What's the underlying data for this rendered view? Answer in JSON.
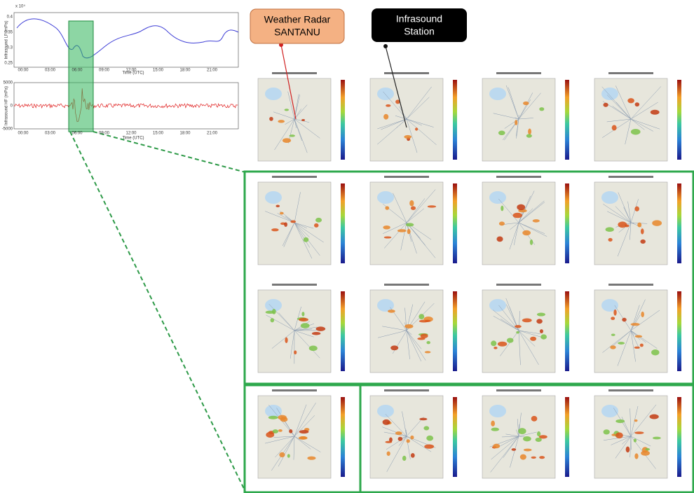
{
  "callouts": {
    "radar": [
      "Weather Radar",
      "SANTANU"
    ],
    "station": [
      "Infrasound",
      "Station"
    ]
  },
  "lf_plot": {
    "exponent_label": "x 10⁴",
    "y_axis_label": "Infrasound LF (mPa)",
    "yticks": [
      "0.4",
      "0.35",
      "0.3",
      "0.25"
    ],
    "xticks": [
      "00:00",
      "03:00",
      "06:00",
      "09:00",
      "12:00",
      "15:00",
      "18:00",
      "21:00"
    ],
    "x_axis_label": "Time (UTC)"
  },
  "hf_plot": {
    "y_axis_label": "Infrasound HF (mPa)",
    "yticks": [
      "5000",
      "0",
      "-5000"
    ],
    "xticks": [
      "00:00",
      "03:00",
      "06:00",
      "09:00",
      "12:00",
      "15:00",
      "18:00",
      "21:00"
    ],
    "x_axis_label": "Time (UTC)"
  }
}
